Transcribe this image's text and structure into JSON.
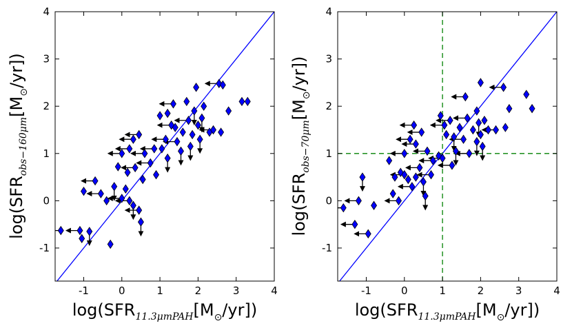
{
  "chart_data": [
    {
      "type": "scatter",
      "panel": "left",
      "xlabel": {
        "pre": "log(SFR",
        "sub": "11.3μmPAH",
        "mid": "[M",
        "sun": "⊙",
        "post": "/yr])"
      },
      "ylabel": {
        "pre": "log(SFR",
        "sub": "obs−160μm",
        "mid": "[M",
        "sun": "⊙",
        "post": "/yr])"
      },
      "xlim": [
        -1.75,
        4.0
      ],
      "ylim": [
        -1.7,
        4.0
      ],
      "xticks": [
        "-1",
        "0",
        "1",
        "2",
        "3",
        "4"
      ],
      "yticks": [
        "-1",
        "0",
        "1",
        "2",
        "3",
        "4"
      ],
      "reference_line": {
        "slope": 1,
        "intercept": 0,
        "color": "#0000ff"
      },
      "marker_color": "#0000ff",
      "points": [
        {
          "x": -1.6,
          "y": -0.63,
          "ul": "x"
        },
        {
          "x": -1.1,
          "y": -0.63,
          "ul": "x"
        },
        {
          "x": -1.05,
          "y": -0.8
        },
        {
          "x": -0.85,
          "y": -0.65,
          "ul": "y"
        },
        {
          "x": -1.0,
          "y": 0.2
        },
        {
          "x": -0.3,
          "y": -0.92
        },
        {
          "x": -0.7,
          "y": 0.42,
          "ul": "x"
        },
        {
          "x": -0.55,
          "y": 0.15,
          "ul": "x"
        },
        {
          "x": -0.4,
          "y": 0.0
        },
        {
          "x": -0.2,
          "y": 0.3,
          "ul": "y"
        },
        {
          "x": 0.0,
          "y": 0.05,
          "ul": "x"
        },
        {
          "x": 0.1,
          "y": 0.25
        },
        {
          "x": 0.2,
          "y": 0.0,
          "ul": "x"
        },
        {
          "x": 0.3,
          "y": -0.1,
          "ul": "y"
        },
        {
          "x": 0.45,
          "y": -0.2,
          "ul": "x"
        },
        {
          "x": 0.5,
          "y": -0.45,
          "ul": "y"
        },
        {
          "x": 0.15,
          "y": 0.6
        },
        {
          "x": 0.35,
          "y": 0.7,
          "ul": "x"
        },
        {
          "x": 0.55,
          "y": 0.45
        },
        {
          "x": -0.1,
          "y": 0.72
        },
        {
          "x": 0.0,
          "y": 1.0,
          "ul": "x"
        },
        {
          "x": 0.2,
          "y": 1.1,
          "ul": "x"
        },
        {
          "x": 0.3,
          "y": 1.3,
          "ul": "x"
        },
        {
          "x": 0.45,
          "y": 1.4,
          "ul": "x"
        },
        {
          "x": 0.6,
          "y": 1.0,
          "ul": "x"
        },
        {
          "x": 0.75,
          "y": 0.8,
          "ul": "x"
        },
        {
          "x": 0.9,
          "y": 0.55
        },
        {
          "x": 1.05,
          "y": 1.1
        },
        {
          "x": 1.2,
          "y": 0.9,
          "ul": "y"
        },
        {
          "x": 1.15,
          "y": 1.3,
          "ul": "x"
        },
        {
          "x": 1.3,
          "y": 1.6,
          "ul": "x"
        },
        {
          "x": 1.0,
          "y": 1.8
        },
        {
          "x": 1.2,
          "y": 1.85
        },
        {
          "x": 1.4,
          "y": 1.55
        },
        {
          "x": 1.45,
          "y": 1.25,
          "ul": "x"
        },
        {
          "x": 1.55,
          "y": 1.05,
          "ul": "y"
        },
        {
          "x": 1.6,
          "y": 1.45
        },
        {
          "x": 1.75,
          "y": 1.7,
          "ul": "x"
        },
        {
          "x": 1.85,
          "y": 1.4
        },
        {
          "x": 1.8,
          "y": 1.15,
          "ul": "y"
        },
        {
          "x": 1.9,
          "y": 1.9,
          "ul": "y"
        },
        {
          "x": 2.0,
          "y": 1.6
        },
        {
          "x": 2.05,
          "y": 1.3,
          "ul": "y"
        },
        {
          "x": 2.1,
          "y": 1.75,
          "ul": "y"
        },
        {
          "x": 2.15,
          "y": 2.0
        },
        {
          "x": 1.95,
          "y": 2.4
        },
        {
          "x": 2.3,
          "y": 1.45
        },
        {
          "x": 2.4,
          "y": 1.5,
          "ul": "x"
        },
        {
          "x": 2.6,
          "y": 1.45
        },
        {
          "x": 2.55,
          "y": 2.48,
          "ul": "x"
        },
        {
          "x": 2.65,
          "y": 2.45
        },
        {
          "x": 2.8,
          "y": 1.9
        },
        {
          "x": 3.15,
          "y": 2.1
        },
        {
          "x": 3.3,
          "y": 2.1
        },
        {
          "x": 1.35,
          "y": 2.05,
          "ul": "x"
        },
        {
          "x": 1.7,
          "y": 2.1
        },
        {
          "x": 0.85,
          "y": 1.1,
          "ul": "x"
        }
      ]
    },
    {
      "type": "scatter",
      "panel": "right",
      "xlabel": {
        "pre": "log(SFR",
        "sub": "11.3μmPAH",
        "mid": "[M",
        "sun": "⊙",
        "post": "/yr])"
      },
      "ylabel": {
        "pre": "log(SFR",
        "sub": "obs−70μm",
        "mid": "[M",
        "sun": "⊙",
        "post": "/yr])"
      },
      "xlim": [
        -1.75,
        4.0
      ],
      "ylim": [
        -1.7,
        4.0
      ],
      "xticks": [
        "-1",
        "0",
        "1",
        "2",
        "3",
        "4"
      ],
      "yticks": [
        "-1",
        "0",
        "1",
        "2",
        "3",
        "4"
      ],
      "reference_line": {
        "slope": 1,
        "intercept": 0,
        "color": "#0000ff"
      },
      "threshold_lines": {
        "x": 1,
        "y": 1,
        "color": "#008000",
        "style": "dashed"
      },
      "marker_color": "#0000ff",
      "points": [
        {
          "x": -1.6,
          "y": -0.15,
          "ul": "x"
        },
        {
          "x": -1.3,
          "y": -0.5,
          "ul": "x"
        },
        {
          "x": -0.95,
          "y": -0.7,
          "ul": "x"
        },
        {
          "x": -0.8,
          "y": -0.1
        },
        {
          "x": -1.1,
          "y": 0.5,
          "ul": "y"
        },
        {
          "x": -1.2,
          "y": 0.0,
          "ul": "x"
        },
        {
          "x": -0.3,
          "y": 0.15
        },
        {
          "x": -0.25,
          "y": 0.5
        },
        {
          "x": -0.4,
          "y": 0.85
        },
        {
          "x": -0.1,
          "y": 0.6
        },
        {
          "x": 0.0,
          "y": 0.55,
          "ul": "x"
        },
        {
          "x": 0.1,
          "y": 0.45
        },
        {
          "x": 0.2,
          "y": 0.3,
          "ul": "x"
        },
        {
          "x": 0.3,
          "y": 0.5
        },
        {
          "x": 0.4,
          "y": 0.7,
          "ul": "x"
        },
        {
          "x": 0.5,
          "y": 0.4,
          "ul": "y"
        },
        {
          "x": 0.55,
          "y": 0.1,
          "ul": "y"
        },
        {
          "x": 0.0,
          "y": 1.0,
          "ul": "x"
        },
        {
          "x": 0.15,
          "y": 1.3,
          "ul": "x"
        },
        {
          "x": 0.3,
          "y": 1.2,
          "ul": "x"
        },
        {
          "x": 0.45,
          "y": 1.45,
          "ul": "x"
        },
        {
          "x": 0.25,
          "y": 1.6,
          "ul": "x"
        },
        {
          "x": 0.6,
          "y": 1.05,
          "ul": "x"
        },
        {
          "x": 0.75,
          "y": 0.85,
          "ul": "x"
        },
        {
          "x": 0.9,
          "y": 0.95
        },
        {
          "x": 1.05,
          "y": 1.6,
          "ul": "x"
        },
        {
          "x": 1.1,
          "y": 1.4
        },
        {
          "x": 1.2,
          "y": 1.7,
          "ul": "x"
        },
        {
          "x": 1.3,
          "y": 1.35,
          "ul": "y"
        },
        {
          "x": 1.35,
          "y": 1.05,
          "ul": "y"
        },
        {
          "x": 1.45,
          "y": 1.55
        },
        {
          "x": 1.55,
          "y": 1.3,
          "ul": "x"
        },
        {
          "x": 1.65,
          "y": 1.75,
          "ul": "x"
        },
        {
          "x": 1.7,
          "y": 1.0,
          "ul": "x"
        },
        {
          "x": 1.8,
          "y": 1.5
        },
        {
          "x": 1.9,
          "y": 1.25,
          "ul": "y"
        },
        {
          "x": 1.95,
          "y": 1.65,
          "ul": "y"
        },
        {
          "x": 2.0,
          "y": 1.4
        },
        {
          "x": 2.1,
          "y": 1.7
        },
        {
          "x": 2.05,
          "y": 1.15,
          "ul": "y"
        },
        {
          "x": 2.2,
          "y": 1.5
        },
        {
          "x": 1.6,
          "y": 2.2,
          "ul": "x"
        },
        {
          "x": 2.0,
          "y": 2.5
        },
        {
          "x": 2.6,
          "y": 2.4,
          "ul": "x"
        },
        {
          "x": 2.4,
          "y": 1.5,
          "ul": "x"
        },
        {
          "x": 2.65,
          "y": 1.55
        },
        {
          "x": 2.75,
          "y": 1.95
        },
        {
          "x": 3.2,
          "y": 2.25
        },
        {
          "x": 3.35,
          "y": 1.95
        },
        {
          "x": 1.9,
          "y": 1.9
        },
        {
          "x": 0.95,
          "y": 1.8
        },
        {
          "x": 1.0,
          "y": 0.9,
          "ul": "x"
        },
        {
          "x": 1.25,
          "y": 0.75,
          "ul": "x"
        },
        {
          "x": 0.7,
          "y": 0.55,
          "ul": "x"
        },
        {
          "x": -0.15,
          "y": 0.0,
          "ul": "x"
        }
      ]
    }
  ]
}
